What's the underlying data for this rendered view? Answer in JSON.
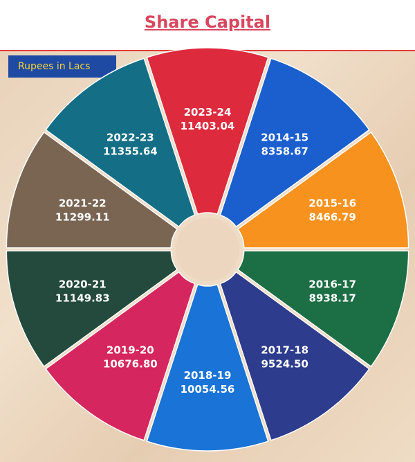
{
  "title": "Share Capital",
  "unit_label": "Rupees in Lacs",
  "chart_data": {
    "type": "pie",
    "title": "Share Capital",
    "unit": "Rupees in Lacs",
    "slices": [
      {
        "label": "2023-24",
        "value": 11403.04,
        "color": "#dd2a3c"
      },
      {
        "label": "2014-15",
        "value": 8358.67,
        "color": "#1b5fcf"
      },
      {
        "label": "2015-16",
        "value": 8466.79,
        "color": "#f7921e"
      },
      {
        "label": "2016-17",
        "value": 8938.17,
        "color": "#1c6e44"
      },
      {
        "label": "2017-18",
        "value": 9524.5,
        "color": "#2d3c8c"
      },
      {
        "label": "2018-19",
        "value": 10054.56,
        "color": "#1a73d6"
      },
      {
        "label": "2019-20",
        "value": 10676.8,
        "color": "#d6265f"
      },
      {
        "label": "2020-21",
        "value": 11149.83,
        "color": "#234a3c"
      },
      {
        "label": "2021-22",
        "value": 11299.11,
        "color": "#7a6552"
      },
      {
        "label": "2022-23",
        "value": 11355.64,
        "color": "#146f86"
      }
    ]
  }
}
